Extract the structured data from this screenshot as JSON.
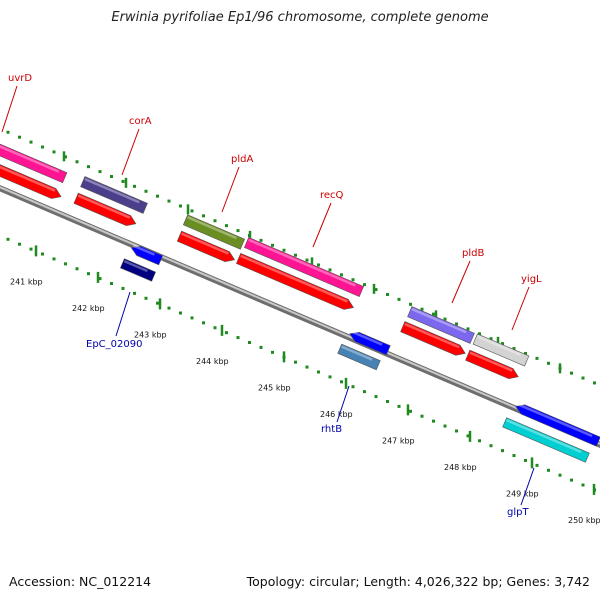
{
  "title": "Erwinia pyrifoliae Ep1/96 chromosome, complete genome",
  "footer": {
    "accession": "Accession: NC_012214",
    "topology": "Topology: circular; Length: 4,026,322 bp; Genes: 3,742"
  },
  "colors": {
    "backbone": "#8a8a8a",
    "tick": "#1f8a1f",
    "label_top": "#cc0000",
    "label_bottom": "#0000aa"
  },
  "ticks": [
    {
      "label": "241 kbp",
      "kbp": 241
    },
    {
      "label": "242 kbp",
      "kbp": 242
    },
    {
      "label": "243 kbp",
      "kbp": 243
    },
    {
      "label": "244 kbp",
      "kbp": 244
    },
    {
      "label": "245 kbp",
      "kbp": 245
    },
    {
      "label": "246 kbp",
      "kbp": 246
    },
    {
      "label": "247 kbp",
      "kbp": 247
    },
    {
      "label": "248 kbp",
      "kbp": 248
    },
    {
      "label": "249 kbp",
      "kbp": 249
    },
    {
      "label": "250 kbp",
      "kbp": 250
    }
  ],
  "genes_top": [
    {
      "name": "uvrD",
      "color": "#ff1493"
    },
    {
      "name": "corA",
      "color": "#4b3f8c"
    },
    {
      "name": "pldA",
      "color": "#6b8e23"
    },
    {
      "name": "recQ",
      "color": "#ff1493"
    },
    {
      "name": "pldB",
      "color": "#7b68ee"
    },
    {
      "name": "yigL",
      "color": "#d3d3d3"
    }
  ],
  "genes_bottom": [
    {
      "name": "EpC_02090",
      "color": "#000080"
    },
    {
      "name": "rhtB",
      "color": "#4682b4"
    },
    {
      "name": "glpT",
      "color": "#00ced1"
    }
  ]
}
